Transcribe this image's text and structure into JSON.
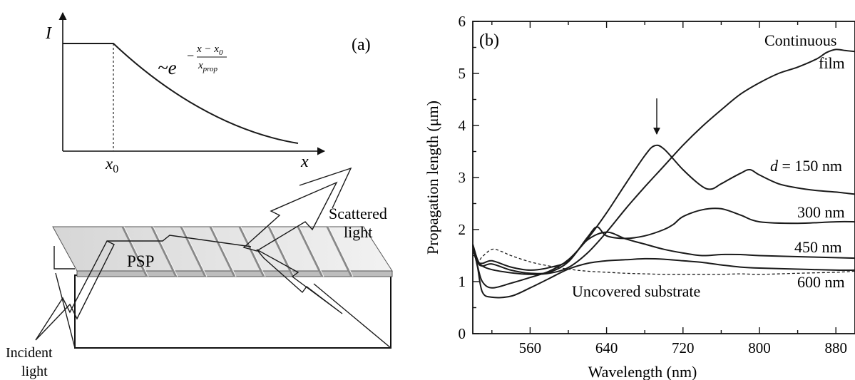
{
  "panel_a": {
    "label": "(a)",
    "y_axis_label": "I",
    "x_axis_label": "x",
    "x0_label": "x",
    "x0_subscript": "0",
    "formula_prefix": "~e",
    "formula_minus": "−",
    "formula_numerator": "x − x",
    "formula_numerator_sub": "0",
    "formula_denominator": "x",
    "formula_denominator_sub": "prop",
    "chart_data": {
      "type": "line",
      "title": "",
      "description_curve": "constant then exponential decay",
      "x_marker": "x0"
    }
  },
  "diagram": {
    "sample_label": "PSP",
    "scattered_label_1": "Scattered",
    "scattered_label_2": "light",
    "incident_label_1": "Incident",
    "incident_label_2": "light"
  },
  "panel_b": {
    "label": "(b)",
    "xlabel": "Wavelength  (nm)",
    "ylabel": "Propagation length  (μm)",
    "curve_labels": {
      "continuous_1": "Continuous",
      "continuous_2": "film",
      "d_prefix": "d",
      "d150_rest": " = 150 nm",
      "d300": "300 nm",
      "d450": "450 nm",
      "d600": "600 nm",
      "uncovered": "Uncovered substrate"
    },
    "chart_data": {
      "type": "line",
      "xlabel": "Wavelength  (nm)",
      "ylabel": "Propagation length  (μm)",
      "xlim": [
        500,
        900
      ],
      "ylim": [
        0,
        6
      ],
      "xticks": [
        560,
        640,
        720,
        800,
        880
      ],
      "yticks": [
        0,
        1,
        2,
        3,
        4,
        5,
        6
      ],
      "arrow_at_x": 690,
      "series": [
        {
          "name": "Continuous film",
          "style": "solid",
          "x": [
            500,
            505,
            510,
            520,
            540,
            560,
            580,
            600,
            620,
            640,
            660,
            680,
            700,
            720,
            740,
            760,
            780,
            800,
            820,
            840,
            860,
            870,
            880,
            890,
            900
          ],
          "y": [
            1.72,
            1.42,
            1.3,
            1.23,
            1.17,
            1.14,
            1.16,
            1.27,
            1.55,
            1.95,
            2.4,
            2.82,
            3.22,
            3.62,
            3.98,
            4.3,
            4.6,
            4.82,
            5.0,
            5.12,
            5.28,
            5.4,
            5.46,
            5.44,
            5.42
          ]
        },
        {
          "name": "d = 150 nm",
          "style": "solid",
          "x": [
            500,
            505,
            510,
            520,
            540,
            560,
            580,
            600,
            620,
            640,
            660,
            680,
            690,
            700,
            720,
            740,
            750,
            760,
            780,
            790,
            800,
            820,
            840,
            860,
            880,
            900
          ],
          "y": [
            1.68,
            1.3,
            1.0,
            0.88,
            0.97,
            1.08,
            1.2,
            1.42,
            1.82,
            2.32,
            2.88,
            3.42,
            3.61,
            3.55,
            3.15,
            2.83,
            2.78,
            2.88,
            3.08,
            3.15,
            3.05,
            2.88,
            2.8,
            2.75,
            2.72,
            2.68
          ]
        },
        {
          "name": "300 nm",
          "style": "solid",
          "x": [
            500,
            505,
            510,
            520,
            540,
            560,
            580,
            600,
            620,
            630,
            640,
            660,
            680,
            700,
            710,
            720,
            740,
            760,
            780,
            800,
            840,
            880,
            900
          ],
          "y": [
            1.7,
            1.38,
            1.3,
            1.34,
            1.22,
            1.16,
            1.18,
            1.38,
            1.85,
            2.05,
            1.88,
            1.83,
            1.88,
            2.0,
            2.1,
            2.25,
            2.38,
            2.4,
            2.28,
            2.15,
            2.12,
            2.15,
            2.15
          ]
        },
        {
          "name": "450 nm",
          "style": "solid",
          "x": [
            500,
            505,
            510,
            520,
            540,
            560,
            580,
            600,
            620,
            640,
            660,
            680,
            700,
            720,
            740,
            760,
            780,
            800,
            840,
            880,
            900
          ],
          "y": [
            1.7,
            1.4,
            1.35,
            1.4,
            1.28,
            1.22,
            1.27,
            1.4,
            1.8,
            1.95,
            1.82,
            1.72,
            1.62,
            1.55,
            1.5,
            1.52,
            1.52,
            1.5,
            1.48,
            1.46,
            1.45
          ]
        },
        {
          "name": "600 nm",
          "style": "solid",
          "x": [
            500,
            505,
            510,
            520,
            540,
            560,
            580,
            600,
            620,
            640,
            660,
            680,
            700,
            720,
            740,
            760,
            780,
            800,
            840,
            880,
            900
          ],
          "y": [
            1.7,
            1.28,
            0.8,
            0.7,
            0.72,
            0.88,
            1.06,
            1.24,
            1.35,
            1.4,
            1.42,
            1.44,
            1.43,
            1.4,
            1.37,
            1.32,
            1.28,
            1.26,
            1.24,
            1.22,
            1.22
          ]
        },
        {
          "name": "Uncovered substrate",
          "style": "dashed",
          "x": [
            500,
            505,
            510,
            520,
            530,
            540,
            560,
            580,
            600,
            620,
            640,
            660,
            680,
            700,
            720,
            740,
            760,
            780,
            800,
            840,
            880,
            900
          ],
          "y": [
            1.58,
            1.38,
            1.48,
            1.62,
            1.58,
            1.5,
            1.38,
            1.3,
            1.24,
            1.2,
            1.18,
            1.16,
            1.15,
            1.14,
            1.14,
            1.14,
            1.14,
            1.15,
            1.14,
            1.16,
            1.18,
            1.2
          ]
        }
      ]
    }
  }
}
